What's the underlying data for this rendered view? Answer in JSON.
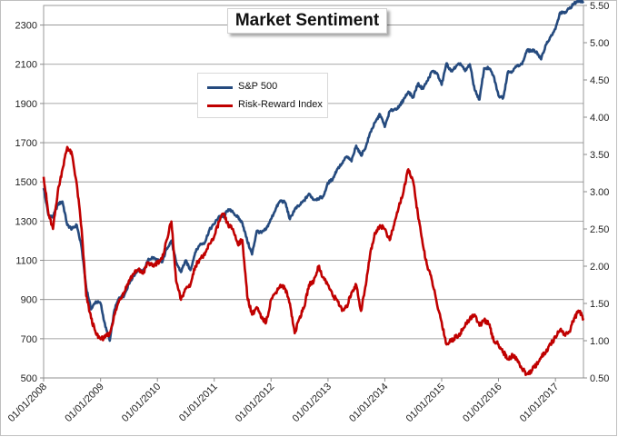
{
  "chart_data": {
    "type": "line",
    "title": "Market Sentiment",
    "xlabel": "",
    "ylabel": "",
    "x_ticks": [
      "01/01/2008",
      "01/01/2009",
      "01/01/2010",
      "01/01/2011",
      "01/01/2012",
      "01/01/2013",
      "01/01/2014",
      "01/01/2015",
      "01/01/2016",
      "01/01/2017"
    ],
    "x_range": [
      "2008-01-01",
      "2017-06-30"
    ],
    "y_left": {
      "ticks": [
        "500",
        "700",
        "900",
        "1100",
        "1300",
        "1500",
        "1700",
        "1900",
        "2100",
        "2300"
      ],
      "ylim": [
        500,
        2400
      ]
    },
    "y_right": {
      "ticks": [
        "0.50",
        "1.00",
        "1.50",
        "2.00",
        "2.50",
        "3.00",
        "3.50",
        "4.00",
        "4.50",
        "5.00",
        "5.50"
      ],
      "ylim": [
        0.5,
        5.5
      ]
    },
    "grid": "horizontal",
    "legend_position": "upper-center",
    "series": [
      {
        "name": "S&P 500",
        "axis": "left",
        "color": "#254A7E",
        "points": [
          [
            "2008-01-01",
            1468
          ],
          [
            "2008-02-01",
            1330
          ],
          [
            "2008-03-01",
            1320
          ],
          [
            "2008-04-01",
            1385
          ],
          [
            "2008-05-01",
            1400
          ],
          [
            "2008-06-01",
            1280
          ],
          [
            "2008-07-01",
            1260
          ],
          [
            "2008-08-01",
            1280
          ],
          [
            "2008-09-01",
            1165
          ],
          [
            "2008-10-01",
            960
          ],
          [
            "2008-11-01",
            850
          ],
          [
            "2008-12-01",
            890
          ],
          [
            "2009-01-01",
            880
          ],
          [
            "2009-02-01",
            760
          ],
          [
            "2009-03-01",
            690
          ],
          [
            "2009-04-01",
            850
          ],
          [
            "2009-05-01",
            910
          ],
          [
            "2009-06-01",
            920
          ],
          [
            "2009-07-01",
            980
          ],
          [
            "2009-08-01",
            1020
          ],
          [
            "2009-09-01",
            1055
          ],
          [
            "2009-10-01",
            1040
          ],
          [
            "2009-11-01",
            1100
          ],
          [
            "2009-12-01",
            1115
          ],
          [
            "2010-01-01",
            1100
          ],
          [
            "2010-02-01",
            1090
          ],
          [
            "2010-03-01",
            1160
          ],
          [
            "2010-04-01",
            1200
          ],
          [
            "2010-05-01",
            1090
          ],
          [
            "2010-06-01",
            1040
          ],
          [
            "2010-07-01",
            1100
          ],
          [
            "2010-08-01",
            1050
          ],
          [
            "2010-09-01",
            1140
          ],
          [
            "2010-10-01",
            1180
          ],
          [
            "2010-11-01",
            1190
          ],
          [
            "2010-12-01",
            1255
          ],
          [
            "2011-01-01",
            1285
          ],
          [
            "2011-02-01",
            1325
          ],
          [
            "2011-03-01",
            1320
          ],
          [
            "2011-04-01",
            1360
          ],
          [
            "2011-05-01",
            1345
          ],
          [
            "2011-06-01",
            1320
          ],
          [
            "2011-07-01",
            1290
          ],
          [
            "2011-08-01",
            1200
          ],
          [
            "2011-09-01",
            1130
          ],
          [
            "2011-10-01",
            1250
          ],
          [
            "2011-11-01",
            1240
          ],
          [
            "2011-12-01",
            1260
          ],
          [
            "2012-01-01",
            1310
          ],
          [
            "2012-02-01",
            1365
          ],
          [
            "2012-03-01",
            1405
          ],
          [
            "2012-04-01",
            1395
          ],
          [
            "2012-05-01",
            1310
          ],
          [
            "2012-06-01",
            1360
          ],
          [
            "2012-07-01",
            1380
          ],
          [
            "2012-08-01",
            1405
          ],
          [
            "2012-09-01",
            1440
          ],
          [
            "2012-10-01",
            1410
          ],
          [
            "2012-11-01",
            1415
          ],
          [
            "2012-12-01",
            1425
          ],
          [
            "2013-01-01",
            1495
          ],
          [
            "2013-02-01",
            1515
          ],
          [
            "2013-03-01",
            1565
          ],
          [
            "2013-04-01",
            1595
          ],
          [
            "2013-05-01",
            1630
          ],
          [
            "2013-06-01",
            1605
          ],
          [
            "2013-07-01",
            1685
          ],
          [
            "2013-08-01",
            1635
          ],
          [
            "2013-09-01",
            1680
          ],
          [
            "2013-10-01",
            1755
          ],
          [
            "2013-11-01",
            1805
          ],
          [
            "2013-12-01",
            1845
          ],
          [
            "2014-01-01",
            1780
          ],
          [
            "2014-02-01",
            1860
          ],
          [
            "2014-03-01",
            1870
          ],
          [
            "2014-04-01",
            1880
          ],
          [
            "2014-05-01",
            1920
          ],
          [
            "2014-06-01",
            1960
          ],
          [
            "2014-07-01",
            1930
          ],
          [
            "2014-08-01",
            2000
          ],
          [
            "2014-09-01",
            1975
          ],
          [
            "2014-10-01",
            2015
          ],
          [
            "2014-11-01",
            2065
          ],
          [
            "2014-12-01",
            2055
          ],
          [
            "2015-01-01",
            1995
          ],
          [
            "2015-02-01",
            2105
          ],
          [
            "2015-03-01",
            2065
          ],
          [
            "2015-04-01",
            2085
          ],
          [
            "2015-05-01",
            2105
          ],
          [
            "2015-06-01",
            2065
          ],
          [
            "2015-07-01",
            2100
          ],
          [
            "2015-08-01",
            1970
          ],
          [
            "2015-09-01",
            1920
          ],
          [
            "2015-10-01",
            2080
          ],
          [
            "2015-11-01",
            2080
          ],
          [
            "2015-12-01",
            2040
          ],
          [
            "2016-01-01",
            1940
          ],
          [
            "2016-02-01",
            1930
          ],
          [
            "2016-03-01",
            2060
          ],
          [
            "2016-04-01",
            2065
          ],
          [
            "2016-05-01",
            2095
          ],
          [
            "2016-06-01",
            2100
          ],
          [
            "2016-07-01",
            2170
          ],
          [
            "2016-08-01",
            2170
          ],
          [
            "2016-09-01",
            2165
          ],
          [
            "2016-10-01",
            2125
          ],
          [
            "2016-11-01",
            2200
          ],
          [
            "2016-12-01",
            2240
          ],
          [
            "2017-01-01",
            2280
          ],
          [
            "2017-02-01",
            2365
          ],
          [
            "2017-03-01",
            2360
          ],
          [
            "2017-04-01",
            2385
          ],
          [
            "2017-05-01",
            2410
          ],
          [
            "2017-06-01",
            2425
          ],
          [
            "2017-06-30",
            2420
          ]
        ]
      },
      {
        "name": "Risk-Reward Index",
        "axis": "right",
        "color": "#C00000",
        "points": [
          [
            "2008-01-01",
            3.2
          ],
          [
            "2008-02-01",
            2.7
          ],
          [
            "2008-03-01",
            2.5
          ],
          [
            "2008-04-01",
            3.0
          ],
          [
            "2008-05-01",
            3.3
          ],
          [
            "2008-06-01",
            3.6
          ],
          [
            "2008-07-01",
            3.5
          ],
          [
            "2008-08-01",
            3.1
          ],
          [
            "2008-09-01",
            2.5
          ],
          [
            "2008-10-01",
            1.6
          ],
          [
            "2008-11-01",
            1.3
          ],
          [
            "2008-12-01",
            1.1
          ],
          [
            "2009-01-01",
            1.02
          ],
          [
            "2009-02-01",
            1.05
          ],
          [
            "2009-03-01",
            1.1
          ],
          [
            "2009-04-01",
            1.35
          ],
          [
            "2009-05-01",
            1.55
          ],
          [
            "2009-06-01",
            1.65
          ],
          [
            "2009-07-01",
            1.8
          ],
          [
            "2009-08-01",
            1.9
          ],
          [
            "2009-09-01",
            1.95
          ],
          [
            "2009-10-01",
            1.9
          ],
          [
            "2009-11-01",
            2.05
          ],
          [
            "2009-12-01",
            2.0
          ],
          [
            "2010-01-01",
            2.05
          ],
          [
            "2010-02-01",
            2.1
          ],
          [
            "2010-03-01",
            2.35
          ],
          [
            "2010-04-01",
            2.6
          ],
          [
            "2010-05-01",
            1.8
          ],
          [
            "2010-06-01",
            1.55
          ],
          [
            "2010-07-01",
            1.7
          ],
          [
            "2010-08-01",
            1.75
          ],
          [
            "2010-09-01",
            2.0
          ],
          [
            "2010-10-01",
            2.1
          ],
          [
            "2010-11-01",
            2.15
          ],
          [
            "2010-12-01",
            2.3
          ],
          [
            "2011-01-01",
            2.4
          ],
          [
            "2011-02-01",
            2.6
          ],
          [
            "2011-03-01",
            2.7
          ],
          [
            "2011-04-01",
            2.55
          ],
          [
            "2011-05-01",
            2.5
          ],
          [
            "2011-06-01",
            2.3
          ],
          [
            "2011-07-01",
            2.35
          ],
          [
            "2011-08-01",
            1.6
          ],
          [
            "2011-09-01",
            1.35
          ],
          [
            "2011-10-01",
            1.45
          ],
          [
            "2011-11-01",
            1.3
          ],
          [
            "2011-12-01",
            1.25
          ],
          [
            "2012-01-01",
            1.55
          ],
          [
            "2012-02-01",
            1.65
          ],
          [
            "2012-03-01",
            1.75
          ],
          [
            "2012-04-01",
            1.7
          ],
          [
            "2012-05-01",
            1.5
          ],
          [
            "2012-06-01",
            1.1
          ],
          [
            "2012-07-01",
            1.3
          ],
          [
            "2012-08-01",
            1.45
          ],
          [
            "2012-09-01",
            1.75
          ],
          [
            "2012-10-01",
            1.8
          ],
          [
            "2012-11-01",
            2.0
          ],
          [
            "2012-12-01",
            1.85
          ],
          [
            "2013-01-01",
            1.75
          ],
          [
            "2013-02-01",
            1.6
          ],
          [
            "2013-03-01",
            1.55
          ],
          [
            "2013-04-01",
            1.4
          ],
          [
            "2013-05-01",
            1.45
          ],
          [
            "2013-06-01",
            1.65
          ],
          [
            "2013-07-01",
            1.75
          ],
          [
            "2013-08-01",
            1.4
          ],
          [
            "2013-09-01",
            1.75
          ],
          [
            "2013-10-01",
            2.2
          ],
          [
            "2013-11-01",
            2.45
          ],
          [
            "2013-12-01",
            2.55
          ],
          [
            "2014-01-01",
            2.5
          ],
          [
            "2014-02-01",
            2.35
          ],
          [
            "2014-03-01",
            2.55
          ],
          [
            "2014-04-01",
            2.8
          ],
          [
            "2014-05-01",
            3.0
          ],
          [
            "2014-06-01",
            3.3
          ],
          [
            "2014-07-01",
            3.15
          ],
          [
            "2014-08-01",
            2.7
          ],
          [
            "2014-09-01",
            2.3
          ],
          [
            "2014-10-01",
            2.0
          ],
          [
            "2014-11-01",
            1.8
          ],
          [
            "2014-12-01",
            1.5
          ],
          [
            "2015-01-01",
            1.25
          ],
          [
            "2015-02-01",
            0.95
          ],
          [
            "2015-03-01",
            1.0
          ],
          [
            "2015-04-01",
            1.05
          ],
          [
            "2015-05-01",
            1.1
          ],
          [
            "2015-06-01",
            1.2
          ],
          [
            "2015-07-01",
            1.3
          ],
          [
            "2015-08-01",
            1.35
          ],
          [
            "2015-09-01",
            1.2
          ],
          [
            "2015-10-01",
            1.28
          ],
          [
            "2015-11-01",
            1.22
          ],
          [
            "2015-12-01",
            1.0
          ],
          [
            "2016-01-01",
            0.95
          ],
          [
            "2016-02-01",
            0.85
          ],
          [
            "2016-03-01",
            0.75
          ],
          [
            "2016-04-01",
            0.8
          ],
          [
            "2016-05-01",
            0.75
          ],
          [
            "2016-06-01",
            0.62
          ],
          [
            "2016-07-01",
            0.55
          ],
          [
            "2016-08-01",
            0.6
          ],
          [
            "2016-09-01",
            0.68
          ],
          [
            "2016-10-01",
            0.78
          ],
          [
            "2016-11-01",
            0.85
          ],
          [
            "2016-12-01",
            0.95
          ],
          [
            "2017-01-01",
            1.05
          ],
          [
            "2017-02-01",
            1.15
          ],
          [
            "2017-03-01",
            1.08
          ],
          [
            "2017-04-01",
            1.12
          ],
          [
            "2017-05-01",
            1.3
          ],
          [
            "2017-06-01",
            1.4
          ],
          [
            "2017-06-30",
            1.3
          ]
        ]
      }
    ]
  }
}
